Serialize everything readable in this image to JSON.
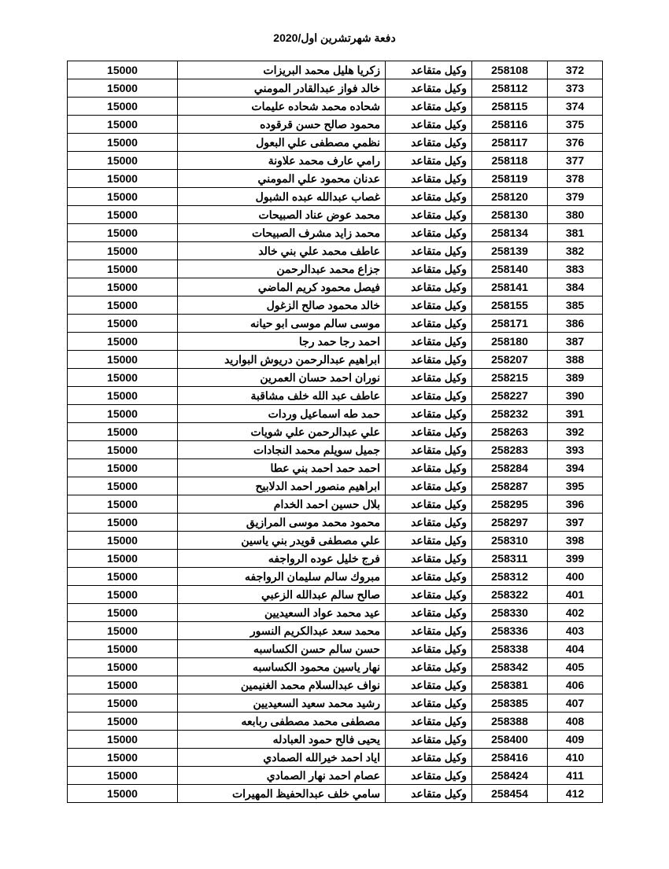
{
  "title": "دفعة شهرتشرين اول/2020",
  "table": {
    "columns": [
      "seq",
      "id",
      "rank",
      "name",
      "amount"
    ],
    "rows": [
      {
        "seq": "372",
        "id": "258108",
        "rank": "وكيل متقاعد",
        "name": "زكريا هليل محمد البريزات",
        "amount": "15000"
      },
      {
        "seq": "373",
        "id": "258112",
        "rank": "وكيل متقاعد",
        "name": "خالد فواز عبدالقادر المومني",
        "amount": "15000"
      },
      {
        "seq": "374",
        "id": "258115",
        "rank": "وكيل متقاعد",
        "name": "شحاده محمد شحاده عليمات",
        "amount": "15000"
      },
      {
        "seq": "375",
        "id": "258116",
        "rank": "وكيل متقاعد",
        "name": "محمود صالح حسن قرقوده",
        "amount": "15000"
      },
      {
        "seq": "376",
        "id": "258117",
        "rank": "وكيل متقاعد",
        "name": "نظمي مصطفى علي البعول",
        "amount": "15000"
      },
      {
        "seq": "377",
        "id": "258118",
        "rank": "وكيل متقاعد",
        "name": "رامي عارف محمد علاونة",
        "amount": "15000"
      },
      {
        "seq": "378",
        "id": "258119",
        "rank": "وكيل متقاعد",
        "name": "عدنان محمود علي المومني",
        "amount": "15000"
      },
      {
        "seq": "379",
        "id": "258120",
        "rank": "وكيل متقاعد",
        "name": "غصاب عبدالله عبده الشبول",
        "amount": "15000"
      },
      {
        "seq": "380",
        "id": "258130",
        "rank": "وكيل متقاعد",
        "name": "محمد عوض عناد الصبيحات",
        "amount": "15000"
      },
      {
        "seq": "381",
        "id": "258134",
        "rank": "وكيل متقاعد",
        "name": "محمد زايد مشرف الصبيحات",
        "amount": "15000"
      },
      {
        "seq": "382",
        "id": "258139",
        "rank": "وكيل متقاعد",
        "name": "عاطف محمد علي بني خالد",
        "amount": "15000"
      },
      {
        "seq": "383",
        "id": "258140",
        "rank": "وكيل متقاعد",
        "name": "جزاع محمد عبدالرحمن",
        "amount": "15000"
      },
      {
        "seq": "384",
        "id": "258141",
        "rank": "وكيل متقاعد",
        "name": "فيصل محمود كريم الماضي",
        "amount": "15000"
      },
      {
        "seq": "385",
        "id": "258155",
        "rank": "وكيل متقاعد",
        "name": "خالد محمود صالح الزغول",
        "amount": "15000"
      },
      {
        "seq": "386",
        "id": "258171",
        "rank": "وكيل متقاعد",
        "name": "موسى سالم موسى ابو حيانه",
        "amount": "15000"
      },
      {
        "seq": "387",
        "id": "258180",
        "rank": "وكيل متقاعد",
        "name": "احمد رجا حمد رجا",
        "amount": "15000"
      },
      {
        "seq": "388",
        "id": "258207",
        "rank": "وكيل متقاعد",
        "name": "ابراهيم عبدالرحمن دريوش البواريد",
        "amount": "15000"
      },
      {
        "seq": "389",
        "id": "258215",
        "rank": "وكيل متقاعد",
        "name": "نوران احمد حسان العمرين",
        "amount": "15000"
      },
      {
        "seq": "390",
        "id": "258227",
        "rank": "وكيل متقاعد",
        "name": "عاطف عبد الله خلف مشاقبة",
        "amount": "15000"
      },
      {
        "seq": "391",
        "id": "258232",
        "rank": "وكيل متقاعد",
        "name": "حمد طه اسماعيل وردات",
        "amount": "15000"
      },
      {
        "seq": "392",
        "id": "258263",
        "rank": "وكيل متقاعد",
        "name": "علي عبدالرحمن علي شويات",
        "amount": "15000"
      },
      {
        "seq": "393",
        "id": "258283",
        "rank": "وكيل متقاعد",
        "name": "جميل سويلم محمد النجادات",
        "amount": "15000"
      },
      {
        "seq": "394",
        "id": "258284",
        "rank": "وكيل متقاعد",
        "name": "احمد حمد احمد بني عطا",
        "amount": "15000"
      },
      {
        "seq": "395",
        "id": "258287",
        "rank": "وكيل متقاعد",
        "name": "ابراهيم منصور احمد الدلابيح",
        "amount": "15000"
      },
      {
        "seq": "396",
        "id": "258295",
        "rank": "وكيل متقاعد",
        "name": "بلال حسين احمد الخدام",
        "amount": "15000"
      },
      {
        "seq": "397",
        "id": "258297",
        "rank": "وكيل متقاعد",
        "name": "محمود محمد موسى المرازيق",
        "amount": "15000"
      },
      {
        "seq": "398",
        "id": "258310",
        "rank": "وكيل متقاعد",
        "name": "علي مصطفى قويدر بني ياسين",
        "amount": "15000"
      },
      {
        "seq": "399",
        "id": "258311",
        "rank": "وكيل متقاعد",
        "name": "فرج خليل عوده الرواجفه",
        "amount": "15000"
      },
      {
        "seq": "400",
        "id": "258312",
        "rank": "وكيل متقاعد",
        "name": "مبروك سالم سليمان الرواجفه",
        "amount": "15000"
      },
      {
        "seq": "401",
        "id": "258322",
        "rank": "وكيل متقاعد",
        "name": "صالح سالم عبدالله الزعبي",
        "amount": "15000"
      },
      {
        "seq": "402",
        "id": "258330",
        "rank": "وكيل متقاعد",
        "name": "عيد محمد عواد السعيديين",
        "amount": "15000"
      },
      {
        "seq": "403",
        "id": "258336",
        "rank": "وكيل متقاعد",
        "name": "محمد سعد عبدالكريم النسور",
        "amount": "15000"
      },
      {
        "seq": "404",
        "id": "258338",
        "rank": "وكيل متقاعد",
        "name": "حسن سالم حسن الكساسبه",
        "amount": "15000"
      },
      {
        "seq": "405",
        "id": "258342",
        "rank": "وكيل متقاعد",
        "name": "نهار ياسين محمود الكساسبه",
        "amount": "15000"
      },
      {
        "seq": "406",
        "id": "258381",
        "rank": "وكيل متقاعد",
        "name": "نواف عبدالسلام محمد الغنيمين",
        "amount": "15000"
      },
      {
        "seq": "407",
        "id": "258385",
        "rank": "وكيل متقاعد",
        "name": "رشيد محمد سعيد السعيديين",
        "amount": "15000"
      },
      {
        "seq": "408",
        "id": "258388",
        "rank": "وكيل متقاعد",
        "name": "مصطفى محمد مصطفى ربابعه",
        "amount": "15000"
      },
      {
        "seq": "409",
        "id": "258400",
        "rank": "وكيل متقاعد",
        "name": "يحيى فالح حمود العبادله",
        "amount": "15000"
      },
      {
        "seq": "410",
        "id": "258416",
        "rank": "وكيل متقاعد",
        "name": "اياد احمد خيرالله الصمادي",
        "amount": "15000"
      },
      {
        "seq": "411",
        "id": "258424",
        "rank": "وكيل متقاعد",
        "name": "عصام احمد نهار الصمادي",
        "amount": "15000"
      },
      {
        "seq": "412",
        "id": "258454",
        "rank": "وكيل متقاعد",
        "name": "سامي خلف عبدالحفيظ المهيرات",
        "amount": "15000"
      }
    ]
  }
}
